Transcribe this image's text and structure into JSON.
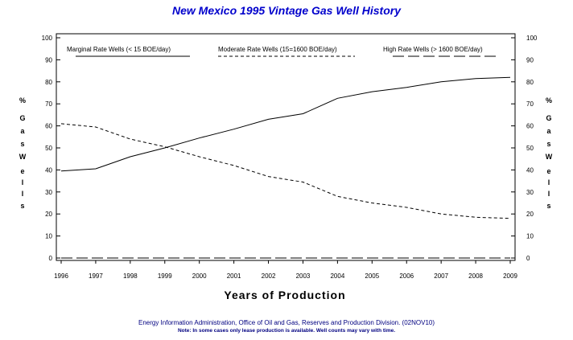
{
  "chart_data": {
    "type": "line",
    "title": "New Mexico 1995 Vintage Gas Well History",
    "xlabel": "Years of Production",
    "ylabel_left": [
      "%",
      "G",
      "a",
      "s",
      "W",
      "e",
      "l",
      "l",
      "s"
    ],
    "ylabel_right": [
      "%",
      "G",
      "a",
      "s",
      "W",
      "e",
      "l",
      "l",
      "s"
    ],
    "x": [
      1996,
      1997,
      1998,
      1999,
      2000,
      2001,
      2002,
      2003,
      2004,
      2005,
      2006,
      2007,
      2008,
      2009
    ],
    "xticks": [
      "1996",
      "1997",
      "1998",
      "1999",
      "2000",
      "2001",
      "2002",
      "2003",
      "2004",
      "2005",
      "2006",
      "2007",
      "2008",
      "2009"
    ],
    "yticks": [
      "0",
      "10",
      "20",
      "30",
      "40",
      "50",
      "60",
      "70",
      "80",
      "90",
      "100"
    ],
    "ylim": [
      0,
      100
    ],
    "grid": false,
    "legend_position": "top",
    "series": [
      {
        "name": "Marginal Rate Wells (< 15 BOE/day)",
        "style": "solid",
        "values": [
          39.5,
          40.5,
          46,
          50,
          54.5,
          58.5,
          63,
          65.5,
          72.5,
          75.5,
          77.5,
          80,
          81.5,
          82
        ]
      },
      {
        "name": "Moderate Rate Wells (15=1600 BOE/day)",
        "style": "short-dash",
        "values": [
          61,
          59.5,
          54,
          50.5,
          46,
          42,
          37,
          34.5,
          28,
          25,
          23,
          20,
          18.5,
          18
        ]
      },
      {
        "name": "High Rate Wells (> 1600 BOE/day)",
        "style": "long-dash",
        "values": [
          0,
          0,
          0,
          0,
          0,
          0,
          0,
          0,
          0,
          0,
          0,
          0,
          0,
          0
        ]
      }
    ]
  },
  "footer": {
    "source": "Energy Information Administration, Office of Oil and Gas, Reserves and Production Division. (02NOV10)",
    "note": "Note: In some cases only lease production is available. Well counts may vary with time."
  },
  "colors": {
    "title": "#0000cc",
    "footer": "#000080",
    "lines": "#000000"
  }
}
